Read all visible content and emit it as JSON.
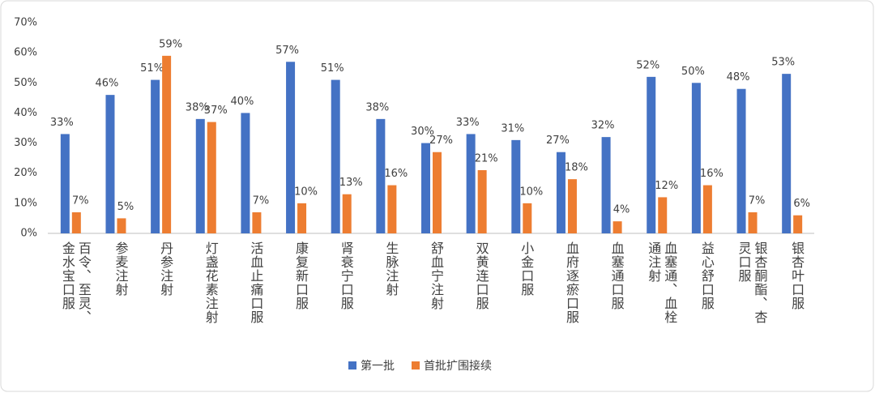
{
  "chart_data": {
    "type": "bar",
    "categories": [
      "百令、至灵、金水宝口服",
      "参麦注射",
      "丹参注射",
      "灯盏花素注射",
      "活血止痛口服",
      "康复新口服",
      "肾衰宁口服",
      "生脉注射",
      "舒血宁注射",
      "双黄连口服",
      "小金口服",
      "血府逐瘀口服",
      "血塞通口服",
      "血塞通、血栓通注射",
      "益心舒口服",
      "银杏酮酯、杏灵口服",
      "银杏叶口服"
    ],
    "series": [
      {
        "name": "第一批",
        "color": "#4472c4",
        "values": [
          33,
          46,
          51,
          38,
          40,
          57,
          51,
          38,
          30,
          33,
          31,
          27,
          32,
          52,
          50,
          48,
          53
        ],
        "value_labels": [
          "33%",
          "46%",
          "51%",
          "38%",
          "40%",
          "57%",
          "51%",
          "38%",
          "30%",
          "33%",
          "31%",
          "27%",
          "32%",
          "52%",
          "50%",
          "48%",
          "53%"
        ]
      },
      {
        "name": "首批扩围接续",
        "color": "#ed7d31",
        "values": [
          7,
          5,
          59,
          37,
          7,
          10,
          13,
          16,
          27,
          21,
          10,
          18,
          4,
          12,
          16,
          7,
          6
        ],
        "value_labels": [
          "7%",
          "5%",
          "59%",
          "37%",
          "7%",
          "10%",
          "13%",
          "16%",
          "27%",
          "21%",
          "10%",
          "18%",
          "4%",
          "12%",
          "16%",
          "7%",
          "6%"
        ]
      }
    ],
    "ylim": [
      0,
      70
    ],
    "yticks": [
      {
        "value": 0,
        "label": "0%"
      },
      {
        "value": 10,
        "label": "10%"
      },
      {
        "value": 20,
        "label": "20%"
      },
      {
        "value": 30,
        "label": "30%"
      },
      {
        "value": 40,
        "label": "40%"
      },
      {
        "value": 50,
        "label": "50%"
      },
      {
        "value": 60,
        "label": "60%"
      },
      {
        "value": 70,
        "label": "70%"
      }
    ],
    "legend": "bottom"
  }
}
